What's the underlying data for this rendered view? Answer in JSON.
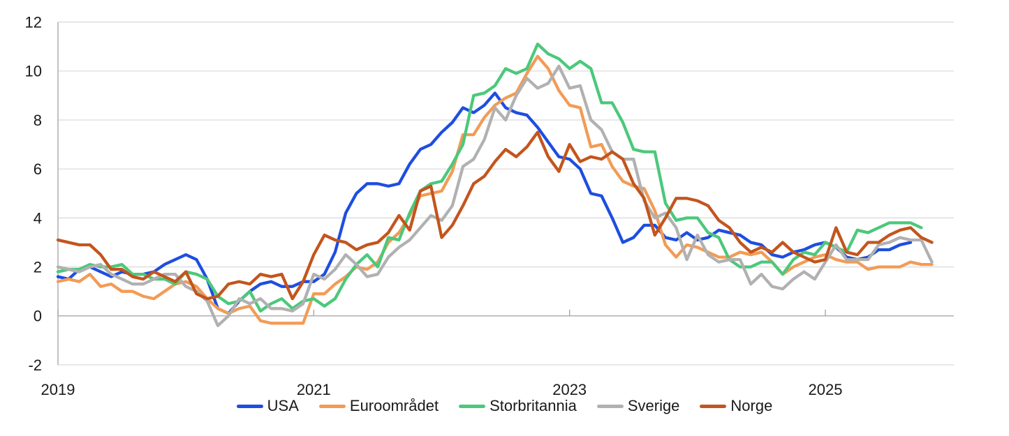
{
  "chart_data": {
    "type": "line",
    "title": "",
    "x_unit": "month",
    "x_start": "2019-01",
    "x_end": "2025-11",
    "points_per_series": 83,
    "x_tick_labels": [
      "2019",
      "2021",
      "2023",
      "2025"
    ],
    "x_tick_month_indices": [
      0,
      24,
      48,
      72
    ],
    "y_ticks": [
      -2,
      0,
      2,
      4,
      6,
      8,
      10,
      12
    ],
    "ylim": [
      -2,
      12
    ],
    "grid": "horizontal",
    "legend_position": "bottom",
    "colors": {
      "grid": "#d9d9d9",
      "axis": "#a8a8a8",
      "text": "#1a1a1a",
      "background": "#ffffff"
    },
    "series": [
      {
        "name": "USA",
        "color": "#1e4ee0",
        "values": [
          1.6,
          1.5,
          1.9,
          2.0,
          1.8,
          1.6,
          1.8,
          1.7,
          1.7,
          1.8,
          2.1,
          2.3,
          2.5,
          2.3,
          1.5,
          0.3,
          0.1,
          0.6,
          1.0,
          1.3,
          1.4,
          1.2,
          1.2,
          1.4,
          1.4,
          1.7,
          2.6,
          4.2,
          5.0,
          5.4,
          5.4,
          5.3,
          5.4,
          6.2,
          6.8,
          7.0,
          7.5,
          7.9,
          8.5,
          8.3,
          8.6,
          9.1,
          8.5,
          8.3,
          8.2,
          7.7,
          7.1,
          6.5,
          6.4,
          6.0,
          5.0,
          4.9,
          4.0,
          3.0,
          3.2,
          3.7,
          3.7,
          3.2,
          3.1,
          3.4,
          3.1,
          3.2,
          3.5,
          3.4,
          3.3,
          3.0,
          2.9,
          2.5,
          2.4,
          2.6,
          2.7,
          2.9,
          3.0,
          2.8,
          2.4,
          2.3,
          2.4,
          2.7,
          2.7,
          2.9,
          3.0,
          null,
          null
        ]
      },
      {
        "name": "Euroområdet",
        "color": "#f29b56",
        "values": [
          1.4,
          1.5,
          1.4,
          1.7,
          1.2,
          1.3,
          1.0,
          1.0,
          0.8,
          0.7,
          1.0,
          1.3,
          1.4,
          1.2,
          0.7,
          0.3,
          0.1,
          0.3,
          0.4,
          -0.2,
          -0.3,
          -0.3,
          -0.3,
          -0.3,
          0.9,
          0.9,
          1.3,
          1.6,
          2.0,
          1.9,
          2.2,
          3.0,
          3.4,
          4.1,
          4.9,
          5.0,
          5.1,
          5.9,
          7.4,
          7.4,
          8.1,
          8.6,
          8.9,
          9.1,
          9.9,
          10.6,
          10.1,
          9.2,
          8.6,
          8.5,
          6.9,
          7.0,
          6.1,
          5.5,
          5.3,
          5.2,
          4.3,
          2.9,
          2.4,
          2.9,
          2.8,
          2.6,
          2.4,
          2.4,
          2.6,
          2.5,
          2.6,
          2.2,
          1.7,
          2.0,
          2.2,
          2.4,
          2.5,
          2.3,
          2.2,
          2.2,
          1.9,
          2.0,
          2.0,
          2.0,
          2.2,
          2.1,
          2.1
        ]
      },
      {
        "name": "Storbritannia",
        "color": "#4cc87b",
        "values": [
          1.8,
          1.9,
          1.9,
          2.1,
          2.0,
          2.0,
          2.1,
          1.7,
          1.7,
          1.5,
          1.5,
          1.3,
          1.8,
          1.7,
          1.5,
          0.8,
          0.5,
          0.6,
          1.0,
          0.2,
          0.5,
          0.7,
          0.3,
          0.6,
          0.7,
          0.4,
          0.7,
          1.5,
          2.1,
          2.5,
          2.0,
          3.2,
          3.1,
          4.2,
          5.1,
          5.4,
          5.5,
          6.2,
          7.0,
          9.0,
          9.1,
          9.4,
          10.1,
          9.9,
          10.1,
          11.1,
          10.7,
          10.5,
          10.1,
          10.4,
          10.1,
          8.7,
          8.7,
          7.9,
          6.8,
          6.7,
          6.7,
          4.6,
          3.9,
          4.0,
          4.0,
          3.4,
          3.2,
          2.3,
          2.0,
          2.0,
          2.2,
          2.2,
          1.7,
          2.3,
          2.6,
          2.5,
          3.0,
          2.8,
          2.6,
          3.5,
          3.4,
          3.6,
          3.8,
          3.8,
          3.8,
          3.6,
          null
        ]
      },
      {
        "name": "Sverige",
        "color": "#b1b1b1",
        "values": [
          2.0,
          1.9,
          1.8,
          2.0,
          2.1,
          1.7,
          1.5,
          1.3,
          1.3,
          1.5,
          1.7,
          1.7,
          1.2,
          1.0,
          0.6,
          -0.4,
          0.0,
          0.7,
          0.5,
          0.7,
          0.3,
          0.3,
          0.2,
          0.5,
          1.7,
          1.5,
          1.9,
          2.5,
          2.1,
          1.6,
          1.7,
          2.4,
          2.8,
          3.1,
          3.6,
          4.1,
          3.9,
          4.5,
          6.1,
          6.4,
          7.2,
          8.5,
          8.0,
          9.0,
          9.7,
          9.3,
          9.5,
          10.2,
          9.3,
          9.4,
          8.0,
          7.6,
          6.7,
          6.4,
          6.4,
          4.7,
          4.0,
          4.2,
          3.6,
          2.3,
          3.3,
          2.5,
          2.2,
          2.3,
          2.3,
          1.3,
          1.7,
          1.2,
          1.1,
          1.5,
          1.8,
          1.5,
          2.2,
          2.9,
          2.3,
          2.3,
          2.3,
          2.9,
          3.0,
          3.2,
          3.1,
          3.1,
          2.2
        ]
      },
      {
        "name": "Norge",
        "color": "#c3551e",
        "values": [
          3.1,
          3.0,
          2.9,
          2.9,
          2.5,
          1.9,
          1.9,
          1.6,
          1.5,
          1.8,
          1.6,
          1.4,
          1.8,
          0.9,
          0.7,
          0.8,
          1.3,
          1.4,
          1.3,
          1.7,
          1.6,
          1.7,
          0.7,
          1.4,
          2.5,
          3.3,
          3.1,
          3.0,
          2.7,
          2.9,
          3.0,
          3.4,
          4.1,
          3.5,
          5.1,
          5.3,
          3.2,
          3.7,
          4.5,
          5.4,
          5.7,
          6.3,
          6.8,
          6.5,
          6.9,
          7.5,
          6.5,
          5.9,
          7.0,
          6.3,
          6.5,
          6.4,
          6.7,
          6.4,
          5.4,
          4.8,
          3.3,
          4.0,
          4.8,
          4.8,
          4.7,
          4.5,
          3.9,
          3.6,
          3.0,
          2.6,
          2.8,
          2.6,
          3.0,
          2.6,
          2.4,
          2.2,
          2.3,
          3.6,
          2.6,
          2.5,
          3.0,
          3.0,
          3.3,
          3.5,
          3.6,
          3.2,
          3.0
        ]
      }
    ]
  }
}
